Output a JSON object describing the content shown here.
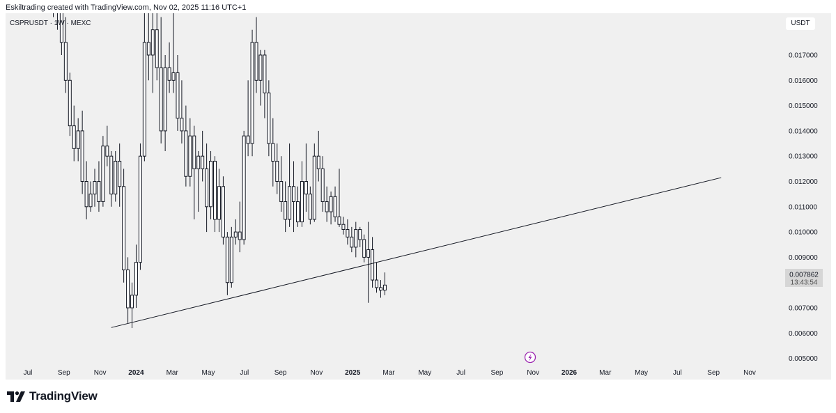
{
  "header": {
    "attribution": "Eskiltrading created with TradingView.com, Nov 02, 2025 11:16 UTC+1"
  },
  "symbol_info": "CSPRUSDT · 1W · MEXC",
  "currency_label": "USDT",
  "price_tag": {
    "price": "0.007862",
    "countdown": "13:43:54"
  },
  "footer": {
    "brand": "TradingView"
  },
  "colors": {
    "background": "#f0f0f0",
    "candle_stroke": "#131722",
    "trendline": "#131722",
    "flash_icon": "#9c27b0"
  },
  "icons": {
    "footer_logo": "tradingview-logo-icon",
    "event": "flash-icon"
  },
  "chart_data": {
    "type": "candlestick",
    "title": "CSPRUSDT · 1W · MEXC",
    "y_ticks": [
      "0.017000",
      "0.016000",
      "0.015000",
      "0.014000",
      "0.013000",
      "0.012000",
      "0.011000",
      "0.010000",
      "0.009000",
      "0.007000",
      "0.006000",
      "0.005000"
    ],
    "x_ticks": [
      "Jul",
      "Sep",
      "Nov",
      "2024",
      "Mar",
      "May",
      "Jul",
      "Sep",
      "Nov",
      "2025",
      "Mar",
      "May",
      "Jul",
      "Sep",
      "Nov",
      "2026",
      "Mar",
      "May",
      "Jul",
      "Sep",
      "Nov"
    ],
    "ylim": [
      0.0043,
      0.0185
    ],
    "trendline": {
      "from": {
        "date": "2023-11-06",
        "price": 0.00622
      },
      "to": {
        "date": "2026-09-14",
        "price": 0.01215
      }
    },
    "candles": [
      [
        "2023-07-31",
        0.02,
        0.021,
        0.0185,
        0.0195
      ],
      [
        "2023-08-07",
        0.0195,
        0.0205,
        0.018,
        0.019
      ],
      [
        "2023-08-14",
        0.019,
        0.0195,
        0.017,
        0.0175
      ],
      [
        "2023-08-21",
        0.0175,
        0.0185,
        0.0155,
        0.016
      ],
      [
        "2023-08-28",
        0.016,
        0.0163,
        0.0138,
        0.0142
      ],
      [
        "2023-09-04",
        0.0142,
        0.015,
        0.0128,
        0.0133
      ],
      [
        "2023-09-11",
        0.0133,
        0.0145,
        0.0128,
        0.014
      ],
      [
        "2023-09-18",
        0.014,
        0.0148,
        0.0115,
        0.012
      ],
      [
        "2023-09-25",
        0.012,
        0.0128,
        0.0105,
        0.011
      ],
      [
        "2023-10-02",
        0.011,
        0.012,
        0.0108,
        0.0115
      ],
      [
        "2023-10-09",
        0.0115,
        0.0125,
        0.011,
        0.012
      ],
      [
        "2023-10-16",
        0.012,
        0.0128,
        0.0108,
        0.0112
      ],
      [
        "2023-10-23",
        0.0112,
        0.0138,
        0.011,
        0.0134
      ],
      [
        "2023-10-30",
        0.0134,
        0.0142,
        0.0126,
        0.013
      ],
      [
        "2023-11-06",
        0.013,
        0.0132,
        0.011,
        0.0115
      ],
      [
        "2023-11-13",
        0.0115,
        0.0132,
        0.0112,
        0.0128
      ],
      [
        "2023-11-20",
        0.0128,
        0.0135,
        0.011,
        0.0118
      ],
      [
        "2023-11-27",
        0.0118,
        0.0125,
        0.008,
        0.0085
      ],
      [
        "2023-12-04",
        0.0085,
        0.009,
        0.0064,
        0.007
      ],
      [
        "2023-12-11",
        0.007,
        0.008,
        0.0062,
        0.0075
      ],
      [
        "2023-12-18",
        0.0075,
        0.0095,
        0.007,
        0.0088
      ],
      [
        "2023-12-25",
        0.0088,
        0.0135,
        0.0085,
        0.013
      ],
      [
        "2024-01-01",
        0.013,
        0.02,
        0.0128,
        0.0175
      ],
      [
        "2024-01-08",
        0.0175,
        0.0195,
        0.016,
        0.017
      ],
      [
        "2024-01-15",
        0.017,
        0.019,
        0.0155,
        0.018
      ],
      [
        "2024-01-22",
        0.018,
        0.0195,
        0.016,
        0.0165
      ],
      [
        "2024-01-29",
        0.0165,
        0.0185,
        0.0135,
        0.014
      ],
      [
        "2024-02-05",
        0.014,
        0.017,
        0.0132,
        0.0165
      ],
      [
        "2024-02-12",
        0.0165,
        0.0175,
        0.0155,
        0.016
      ],
      [
        "2024-02-19",
        0.016,
        0.019,
        0.0155,
        0.0163
      ],
      [
        "2024-02-26",
        0.0163,
        0.017,
        0.014,
        0.0145
      ],
      [
        "2024-03-04",
        0.0145,
        0.016,
        0.0135,
        0.014
      ],
      [
        "2024-03-11",
        0.014,
        0.015,
        0.0118,
        0.0122
      ],
      [
        "2024-03-18",
        0.0122,
        0.0145,
        0.0118,
        0.0138
      ],
      [
        "2024-03-25",
        0.0138,
        0.0142,
        0.0105,
        0.0125
      ],
      [
        "2024-04-01",
        0.0125,
        0.0132,
        0.0108,
        0.013
      ],
      [
        "2024-04-08",
        0.013,
        0.014,
        0.012,
        0.0125
      ],
      [
        "2024-04-15",
        0.0125,
        0.0135,
        0.01,
        0.011
      ],
      [
        "2024-04-22",
        0.011,
        0.0132,
        0.0105,
        0.0128
      ],
      [
        "2024-04-29",
        0.0128,
        0.013,
        0.01,
        0.0105
      ],
      [
        "2024-05-06",
        0.0105,
        0.0125,
        0.01,
        0.0118
      ],
      [
        "2024-05-13",
        0.0118,
        0.0122,
        0.0095,
        0.0098
      ],
      [
        "2024-05-20",
        0.0098,
        0.01,
        0.0075,
        0.008
      ],
      [
        "2024-05-27",
        0.008,
        0.0102,
        0.0078,
        0.0098
      ],
      [
        "2024-06-03",
        0.0098,
        0.0105,
        0.0095,
        0.01
      ],
      [
        "2024-06-10",
        0.01,
        0.0112,
        0.0092,
        0.0097
      ],
      [
        "2024-06-17",
        0.0097,
        0.014,
        0.0095,
        0.0138
      ],
      [
        "2024-06-24",
        0.0138,
        0.016,
        0.013,
        0.0135
      ],
      [
        "2024-07-01",
        0.0135,
        0.018,
        0.013,
        0.0175
      ],
      [
        "2024-07-08",
        0.0175,
        0.0185,
        0.0155,
        0.016
      ],
      [
        "2024-07-15",
        0.016,
        0.0172,
        0.015,
        0.017
      ],
      [
        "2024-07-22",
        0.017,
        0.0172,
        0.0145,
        0.0155
      ],
      [
        "2024-07-29",
        0.0155,
        0.016,
        0.013,
        0.0135
      ],
      [
        "2024-08-05",
        0.0135,
        0.0145,
        0.0118,
        0.0128
      ],
      [
        "2024-08-12",
        0.0128,
        0.0135,
        0.0115,
        0.012
      ],
      [
        "2024-08-19",
        0.012,
        0.013,
        0.0108,
        0.0112
      ],
      [
        "2024-08-26",
        0.0112,
        0.012,
        0.01,
        0.0105
      ],
      [
        "2024-09-02",
        0.0105,
        0.0135,
        0.0102,
        0.0118
      ],
      [
        "2024-09-09",
        0.0118,
        0.0128,
        0.01,
        0.0112
      ],
      [
        "2024-09-16",
        0.0112,
        0.0118,
        0.0102,
        0.0104
      ],
      [
        "2024-09-23",
        0.0104,
        0.0128,
        0.0102,
        0.012
      ],
      [
        "2024-09-30",
        0.012,
        0.0135,
        0.0108,
        0.0115
      ],
      [
        "2024-10-07",
        0.0115,
        0.0118,
        0.0103,
        0.0105
      ],
      [
        "2024-10-14",
        0.0105,
        0.0135,
        0.0104,
        0.013
      ],
      [
        "2024-10-21",
        0.013,
        0.014,
        0.012,
        0.0125
      ],
      [
        "2024-10-28",
        0.0125,
        0.013,
        0.0108,
        0.0112
      ],
      [
        "2024-11-04",
        0.0112,
        0.0118,
        0.0104,
        0.0108
      ],
      [
        "2024-11-11",
        0.0108,
        0.0116,
        0.0103,
        0.0114
      ],
      [
        "2024-11-18",
        0.0114,
        0.0118,
        0.0104,
        0.0106
      ],
      [
        "2024-11-25",
        0.0106,
        0.0125,
        0.0102,
        0.0103
      ],
      [
        "2024-12-02",
        0.0103,
        0.0106,
        0.0099,
        0.0101
      ],
      [
        "2024-12-09",
        0.0101,
        0.0105,
        0.0095,
        0.0098
      ],
      [
        "2024-12-16",
        0.0098,
        0.0102,
        0.0092,
        0.0094
      ],
      [
        "2024-12-23",
        0.0094,
        0.0104,
        0.009,
        0.0101
      ],
      [
        "2024-12-30",
        0.0101,
        0.0102,
        0.0094,
        0.0097
      ],
      [
        "2025-01-06",
        0.0097,
        0.0099,
        0.0088,
        0.009
      ],
      [
        "2025-01-13",
        0.009,
        0.0104,
        0.0072,
        0.0093
      ],
      [
        "2025-01-20",
        0.0093,
        0.0098,
        0.0078,
        0.0081
      ],
      [
        "2025-01-27",
        0.0081,
        0.0088,
        0.0076,
        0.0078
      ],
      [
        "2025-02-03",
        0.0078,
        0.0081,
        0.0074,
        0.0077
      ],
      [
        "2025-02-10",
        0.0077,
        0.0084,
        0.0075,
        0.0079
      ]
    ]
  }
}
